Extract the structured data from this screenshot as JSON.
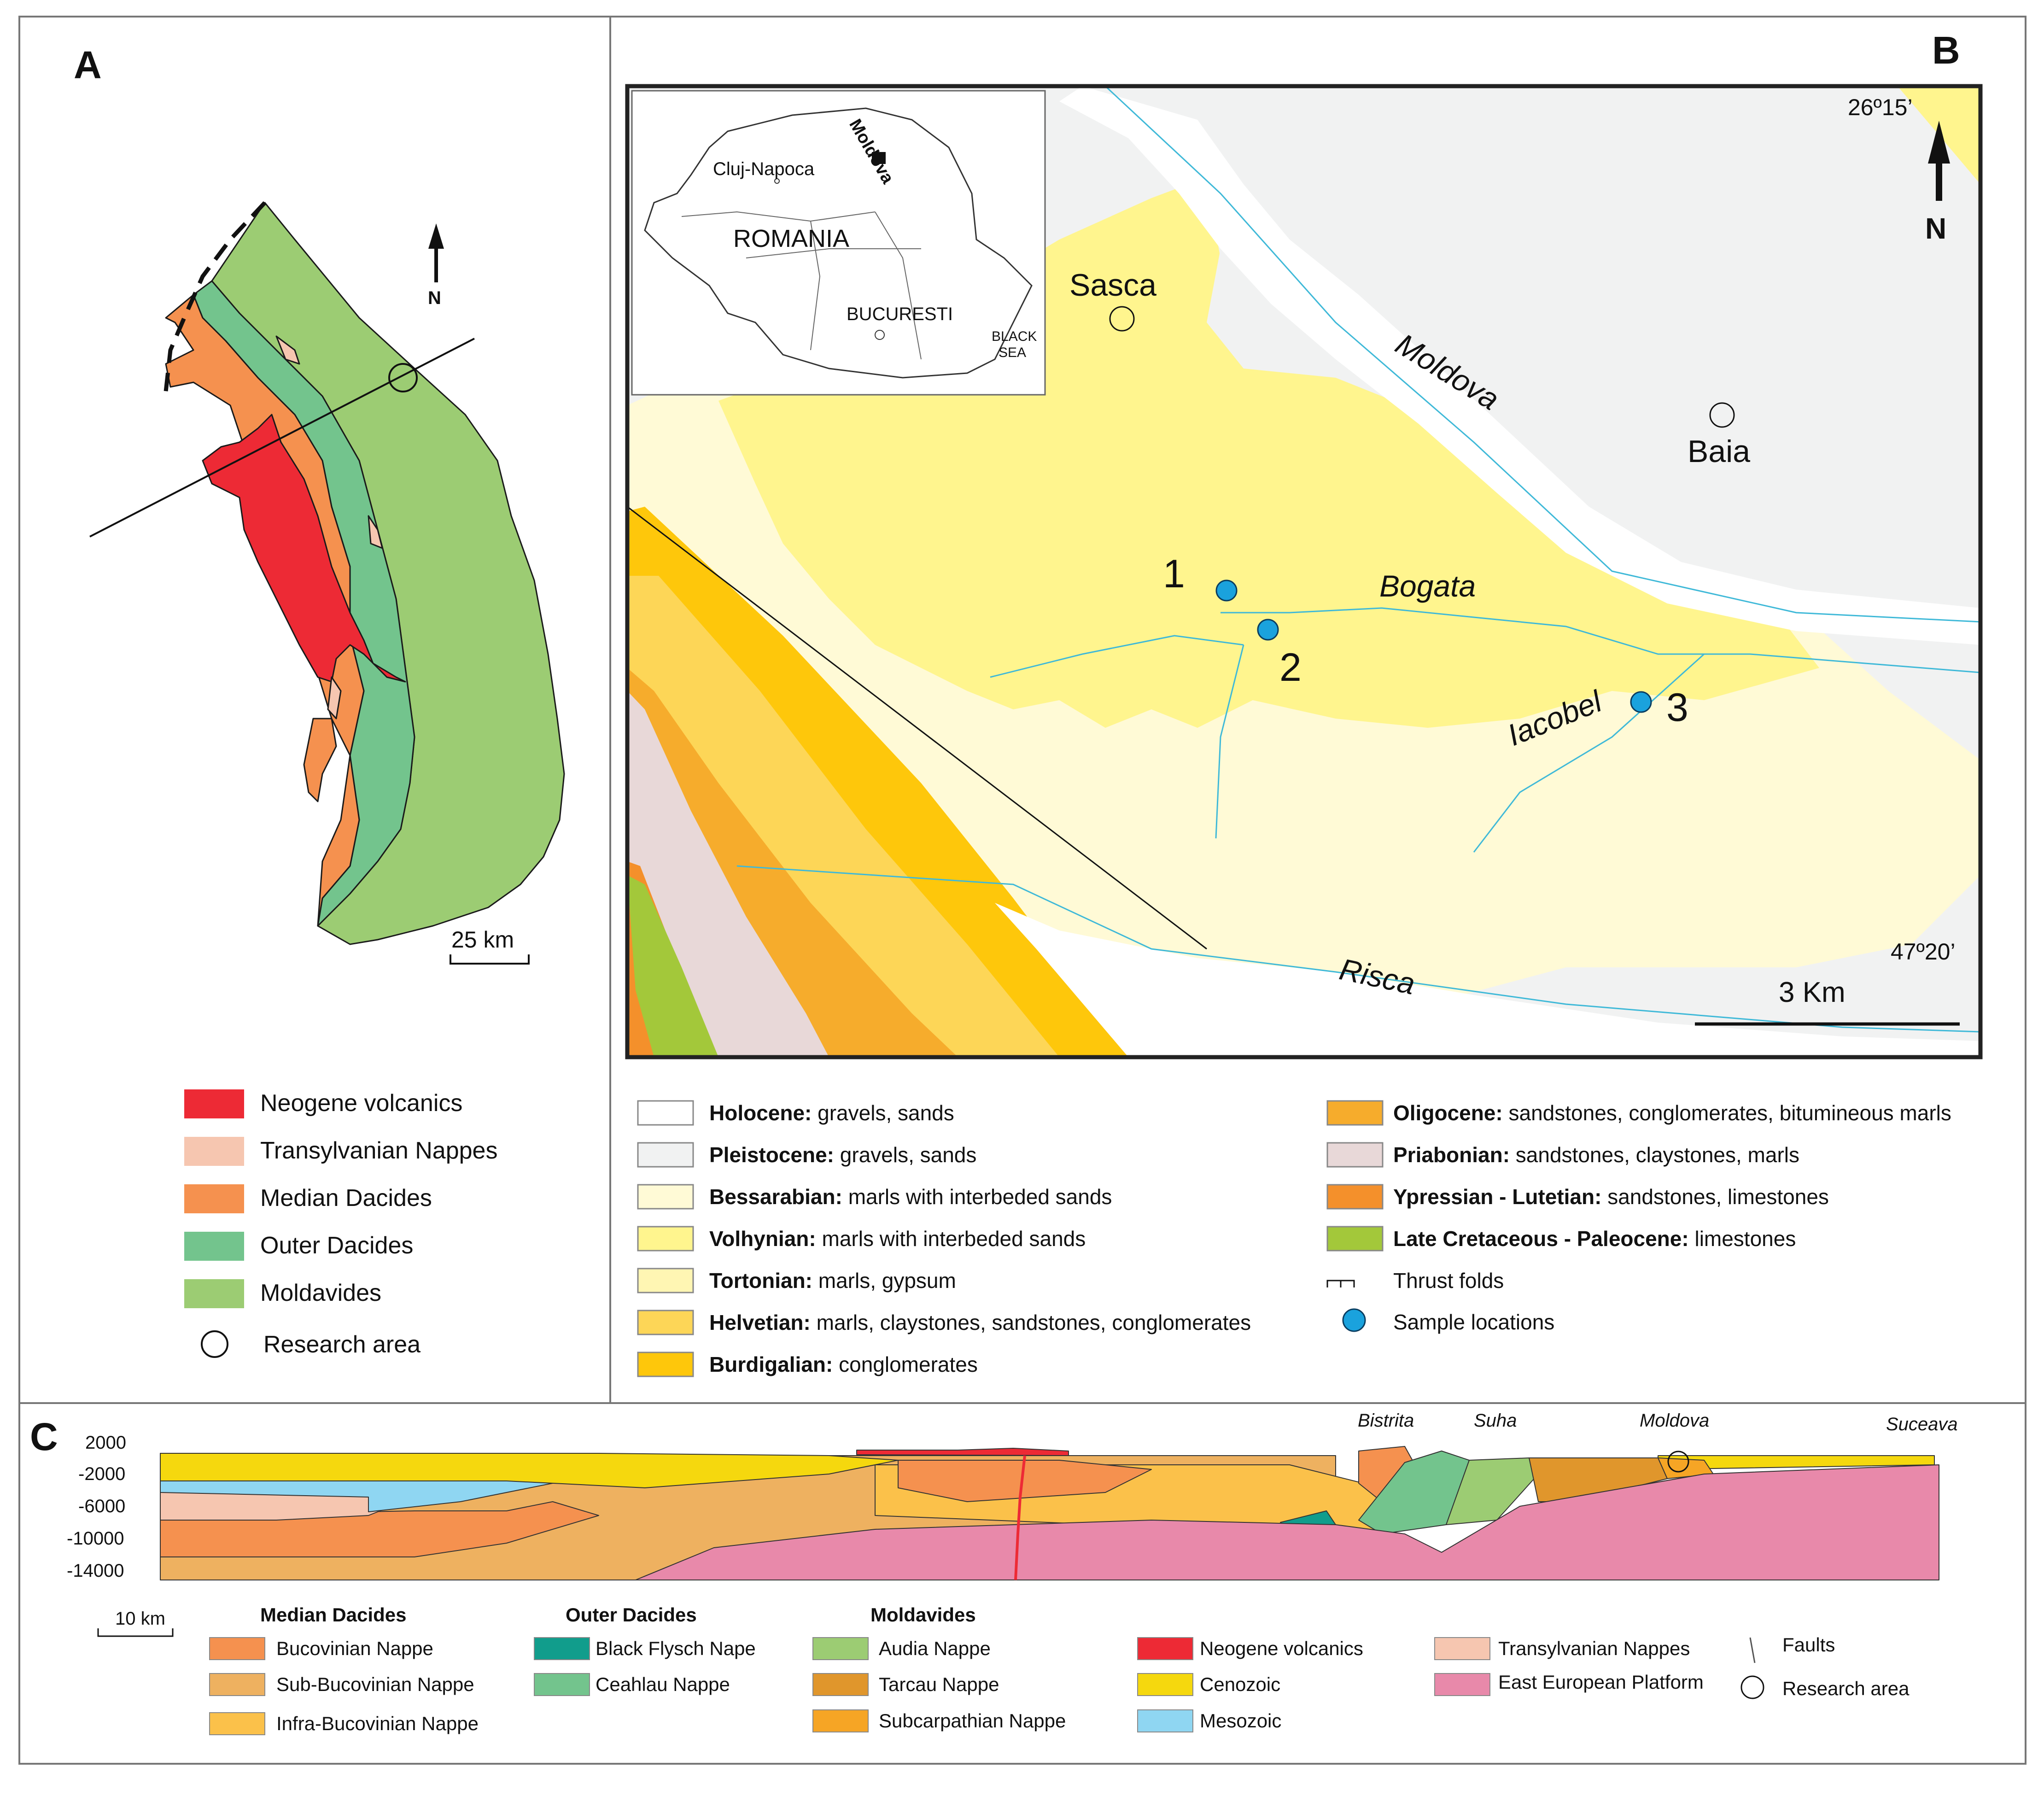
{
  "panels": {
    "a": "A",
    "b": "B",
    "c": "C"
  },
  "north": "N",
  "panel_a": {
    "scale": "25 km",
    "legend": [
      {
        "label": "Neogene volcanics",
        "color": "#ed2a35"
      },
      {
        "label": "Transylvanian Nappes",
        "color": "#f6c6b0"
      },
      {
        "label": "Median Dacides",
        "color": "#f5914f"
      },
      {
        "label": "Outer Dacides",
        "color": "#73c48d"
      },
      {
        "label": "Moldavides",
        "color": "#9ccc73"
      },
      {
        "label": "Research area",
        "color": "#ffffff"
      }
    ]
  },
  "inset": {
    "country": "ROMANIA",
    "region": "Moldova",
    "cities": [
      "Cluj-Napoca",
      "BUCURESTI"
    ],
    "sea": [
      "BLACK",
      "SEA"
    ]
  },
  "panel_b": {
    "coord_top": "26º15’",
    "coord_bottom": "47º20’",
    "scale": "3 Km",
    "places": [
      "Sasca",
      "Baia"
    ],
    "rivers": [
      "Moldova",
      "Bogata",
      "Iacobel",
      "Risca"
    ],
    "samples": [
      "1",
      "2",
      "3"
    ],
    "legend_left": [
      {
        "bold": "Holocene:",
        "text": " gravels, sands",
        "color": "#ffffff"
      },
      {
        "bold": "Pleistocene:",
        "text": " gravels, sands",
        "color": "#f1f2f2"
      },
      {
        "bold": "Bessarabian:",
        "text": " marls with interbeded sands",
        "color": "#fffad6"
      },
      {
        "bold": "Volhynian:",
        "text": " marls with interbeded sands",
        "color": "#fff58e"
      },
      {
        "bold": "Tortonian:",
        "text": " marls, gypsum",
        "color": "#fff6b3"
      },
      {
        "bold": "Helvetian:",
        "text": " marls, claystones, sandstones, conglomerates",
        "color": "#fdd657"
      },
      {
        "bold": "Burdigalian:",
        "text": " conglomerates",
        "color": "#fec70b"
      }
    ],
    "legend_right": [
      {
        "bold": "Oligocene:",
        "text": " sandstones, conglomerates, bitumineous marls",
        "color": "#f6ac2c"
      },
      {
        "bold": "Priabonian:",
        "text": " sandstones, claystones, marls",
        "color": "#e8d8d8"
      },
      {
        "bold": "Ypressian - Lutetian:",
        "text": " sandstones, limestones",
        "color": "#f4902b"
      },
      {
        "bold": "Late Cretaceous - Paleocene:",
        "text": " limestones",
        "color": "#a3c83a"
      }
    ],
    "thrust": "Thrust folds",
    "samples_label": "Sample locations"
  },
  "panel_c": {
    "depths": [
      "2000",
      "-2000",
      "-6000",
      "-10000",
      "-14000"
    ],
    "rivers": [
      "Bistrita",
      "Suha",
      "Moldova",
      "Suceava"
    ],
    "scale": "10 km",
    "groups": [
      {
        "title": "Median Dacides",
        "items": [
          {
            "label": "Bucovinian Nappe",
            "color": "#f5914f"
          },
          {
            "label": "Sub-Bucovinian Nappe",
            "color": "#eeb160"
          },
          {
            "label": "Infra-Bucovinian Nappe",
            "color": "#fbc14a"
          }
        ]
      },
      {
        "title": "Outer Dacides",
        "items": [
          {
            "label": "Black Flysch Nape",
            "color": "#119d8c"
          },
          {
            "label": "Ceahlau Nappe",
            "color": "#73c48d"
          }
        ]
      },
      {
        "title": "Moldavides",
        "items": [
          {
            "label": "Audia Nappe",
            "color": "#9ccc73"
          },
          {
            "label": "Tarcau Nappe",
            "color": "#e0962c"
          },
          {
            "label": "Subcarpathian Nappe",
            "color": "#f6a525"
          }
        ]
      },
      {
        "title": "",
        "items": [
          {
            "label": "Neogene volcanics",
            "color": "#ed2a35"
          },
          {
            "label": "Cenozoic",
            "color": "#f5d80e"
          },
          {
            "label": "Mesozoic",
            "color": "#8fd6f2"
          }
        ]
      },
      {
        "title": "",
        "items": [
          {
            "label": "Transylvanian Nappes",
            "color": "#f6c6b0"
          },
          {
            "label": "East European Platform",
            "color": "#e889aa"
          }
        ]
      }
    ],
    "faults": "Faults",
    "research": "Research area"
  }
}
